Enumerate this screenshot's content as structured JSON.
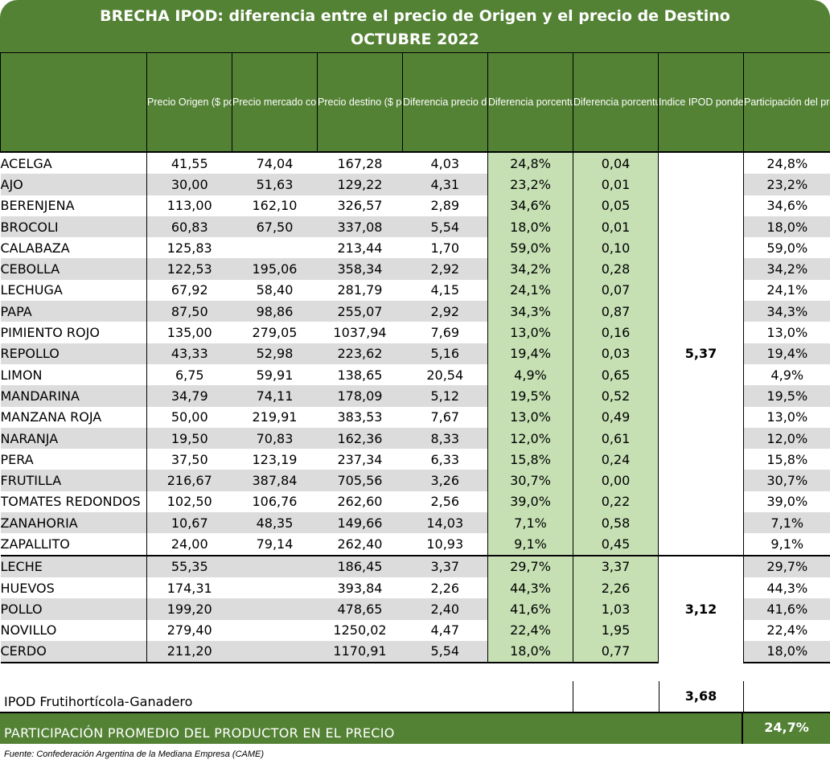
{
  "title": {
    "line1": "BRECHA IPOD: diferencia entre el precio de Origen y el precio de Destino",
    "line2": "OCTUBRE 2022"
  },
  "headers": {
    "product": "",
    "precio_origen": "Precio Origen ($ por KG)",
    "precio_mercado": "Precio mercado concentrador ($ por KG)",
    "precio_destino": "Precio destino ($ por KG)",
    "diferencia": "Diferencia precio destino/origen",
    "dif_porcentual": "Diferencia porcentual destino/origen",
    "dif_ponderada": "Diferencia porcentual destino/origen (PONDERADA)",
    "indice_ipod": "Indice IPOD ponderado",
    "participacion": "Participación del productor en el precio de gondola"
  },
  "group1_ipod": "5,37",
  "group2_ipod": "3,12",
  "rows": [
    {
      "name": "ACELGA",
      "origen": "41,55",
      "mercado": "74,04",
      "destino": "167,28",
      "dif": "4,03",
      "pct": "24,8%",
      "pond": "0,04",
      "part": "24,8%"
    },
    {
      "name": "AJO",
      "origen": "30,00",
      "mercado": "51,63",
      "destino": "129,22",
      "dif": "4,31",
      "pct": "23,2%",
      "pond": "0,01",
      "part": "23,2%"
    },
    {
      "name": "BERENJENA",
      "origen": "113,00",
      "mercado": "162,10",
      "destino": "326,57",
      "dif": "2,89",
      "pct": "34,6%",
      "pond": "0,05",
      "part": "34,6%"
    },
    {
      "name": "BROCOLI",
      "origen": "60,83",
      "mercado": "67,50",
      "destino": "337,08",
      "dif": "5,54",
      "pct": "18,0%",
      "pond": "0,01",
      "part": "18,0%"
    },
    {
      "name": "CALABAZA",
      "origen": "125,83",
      "mercado": "",
      "destino": "213,44",
      "dif": "1,70",
      "pct": "59,0%",
      "pond": "0,10",
      "part": "59,0%"
    },
    {
      "name": "CEBOLLA",
      "origen": "122,53",
      "mercado": "195,06",
      "destino": "358,34",
      "dif": "2,92",
      "pct": "34,2%",
      "pond": "0,28",
      "part": "34,2%"
    },
    {
      "name": "LECHUGA",
      "origen": "67,92",
      "mercado": "58,40",
      "destino": "281,79",
      "dif": "4,15",
      "pct": "24,1%",
      "pond": "0,07",
      "part": "24,1%"
    },
    {
      "name": "PAPA",
      "origen": "87,50",
      "mercado": "98,86",
      "destino": "255,07",
      "dif": "2,92",
      "pct": "34,3%",
      "pond": "0,87",
      "part": "34,3%"
    },
    {
      "name": "PIMIENTO ROJO",
      "origen": "135,00",
      "mercado": "279,05",
      "destino": "1037,94",
      "dif": "7,69",
      "pct": "13,0%",
      "pond": "0,16",
      "part": "13,0%"
    },
    {
      "name": "REPOLLO",
      "origen": "43,33",
      "mercado": "52,98",
      "destino": "223,62",
      "dif": "5,16",
      "pct": "19,4%",
      "pond": "0,03",
      "part": "19,4%"
    },
    {
      "name": "LIMON",
      "origen": "6,75",
      "mercado": "59,91",
      "destino": "138,65",
      "dif": "20,54",
      "pct": "4,9%",
      "pond": "0,65",
      "part": "4,9%"
    },
    {
      "name": "MANDARINA",
      "origen": "34,79",
      "mercado": "74,11",
      "destino": "178,09",
      "dif": "5,12",
      "pct": "19,5%",
      "pond": "0,52",
      "part": "19,5%"
    },
    {
      "name": "MANZANA ROJA",
      "origen": "50,00",
      "mercado": "219,91",
      "destino": "383,53",
      "dif": "7,67",
      "pct": "13,0%",
      "pond": "0,49",
      "part": "13,0%"
    },
    {
      "name": "NARANJA",
      "origen": "19,50",
      "mercado": "70,83",
      "destino": "162,36",
      "dif": "8,33",
      "pct": "12,0%",
      "pond": "0,61",
      "part": "12,0%"
    },
    {
      "name": "PERA",
      "origen": "37,50",
      "mercado": "123,19",
      "destino": "237,34",
      "dif": "6,33",
      "pct": "15,8%",
      "pond": "0,24",
      "part": "15,8%"
    },
    {
      "name": "FRUTILLA",
      "origen": "216,67",
      "mercado": "387,84",
      "destino": "705,56",
      "dif": "3,26",
      "pct": "30,7%",
      "pond": "0,00",
      "part": "30,7%"
    },
    {
      "name": "TOMATES REDONDOS",
      "origen": "102,50",
      "mercado": "106,76",
      "destino": "262,60",
      "dif": "2,56",
      "pct": "39,0%",
      "pond": "0,22",
      "part": "39,0%"
    },
    {
      "name": "ZANAHORIA",
      "origen": "10,67",
      "mercado": "48,35",
      "destino": "149,66",
      "dif": "14,03",
      "pct": "7,1%",
      "pond": "0,58",
      "part": "7,1%"
    },
    {
      "name": "ZAPALLITO",
      "origen": "24,00",
      "mercado": "79,14",
      "destino": "262,40",
      "dif": "10,93",
      "pct": "9,1%",
      "pond": "0,45",
      "part": "9,1%"
    },
    {
      "name": "LECHE",
      "origen": "55,35",
      "mercado": "",
      "destino": "186,45",
      "dif": "3,37",
      "pct": "29,7%",
      "pond": "3,37",
      "part": "29,7%"
    },
    {
      "name": "HUEVOS",
      "origen": "174,31",
      "mercado": "",
      "destino": "393,84",
      "dif": "2,26",
      "pct": "44,3%",
      "pond": "2,26",
      "part": "44,3%"
    },
    {
      "name": "POLLO",
      "origen": "199,20",
      "mercado": "",
      "destino": "478,65",
      "dif": "2,40",
      "pct": "41,6%",
      "pond": "1,03",
      "part": "41,6%"
    },
    {
      "name": "NOVILLO",
      "origen": "279,40",
      "mercado": "",
      "destino": "1250,02",
      "dif": "4,47",
      "pct": "22,4%",
      "pond": "1,95",
      "part": "22,4%"
    },
    {
      "name": "CERDO",
      "origen": "211,20",
      "mercado": "",
      "destino": "1170,91",
      "dif": "5,54",
      "pct": "18,0%",
      "pond": "0,77",
      "part": "18,0%"
    }
  ],
  "summary": {
    "label": "IPOD Frutihortícola-Ganadero",
    "value": "3,68"
  },
  "participacion_promedio": {
    "label": "PARTICIPACIÓN PROMEDIO DEL PRODUCTOR EN EL PRECIO",
    "value": "24,7%"
  },
  "footnote": "Fuente: Confederación Argentina de la Mediana Empresa (CAME)",
  "colors": {
    "header_green": "#548235",
    "light_green": "#c6e0b4",
    "row_gray": "#dcdcdc"
  }
}
